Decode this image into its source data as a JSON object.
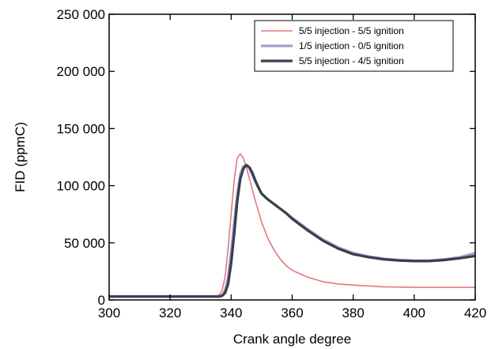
{
  "chart_data": {
    "type": "line",
    "title": "",
    "xlabel": "Crank angle degree",
    "ylabel": "FID (ppmC)",
    "xlim": [
      300,
      420
    ],
    "ylim": [
      0,
      250000
    ],
    "x_ticks": [
      300,
      320,
      340,
      360,
      380,
      400,
      420
    ],
    "x_tick_labels": [
      "300",
      "320",
      "340",
      "360",
      "380",
      "400",
      "420"
    ],
    "y_ticks": [
      0,
      50000,
      100000,
      150000,
      200000,
      250000
    ],
    "y_tick_labels": [
      "0",
      "50 000",
      "100 000",
      "150 000",
      "200 000",
      "250 000"
    ],
    "grid": false,
    "legend_position": "top-right",
    "series": [
      {
        "name": "5/5 injection - 5/5 ignition",
        "color": "#e07a7a",
        "stroke_weight": 1,
        "x": [
          300,
          330,
          335,
          336,
          337,
          338,
          339,
          340,
          341,
          342,
          343,
          344,
          345,
          346,
          347,
          348,
          349,
          350,
          352,
          354,
          356,
          358,
          360,
          365,
          370,
          375,
          380,
          390,
          400,
          410,
          420
        ],
        "y": [
          3500,
          3500,
          3500,
          4000,
          8000,
          20000,
          45000,
          75000,
          105000,
          124000,
          128000,
          124000,
          116000,
          106000,
          96000,
          86000,
          77000,
          68000,
          54000,
          44000,
          36000,
          30000,
          26000,
          20000,
          16000,
          14000,
          13000,
          11500,
          11000,
          11000,
          11000
        ]
      },
      {
        "name": "1/5 injection - 0/5 ignition",
        "color": "#9ea4cc",
        "stroke_weight": 3,
        "x": [
          300,
          330,
          336,
          337,
          338,
          339,
          340,
          341,
          342,
          343,
          344,
          345,
          346,
          347,
          348,
          349,
          350,
          352,
          354,
          356,
          358,
          360,
          365,
          370,
          375,
          380,
          385,
          390,
          395,
          400,
          405,
          410,
          415,
          420
        ],
        "y": [
          3000,
          3000,
          3000,
          4000,
          8000,
          20000,
          42000,
          68000,
          92000,
          110000,
          117000,
          118000,
          115000,
          109000,
          103000,
          98000,
          93000,
          88000,
          84000,
          80000,
          76000,
          72000,
          62000,
          53000,
          46000,
          41000,
          38000,
          36000,
          35000,
          34500,
          34500,
          35500,
          37500,
          41000
        ]
      },
      {
        "name": "5/5 injection - 4/5 ignition",
        "color": "#3c3c4e",
        "stroke_weight": 3,
        "x": [
          300,
          330,
          336,
          337,
          338,
          339,
          340,
          341,
          342,
          343,
          344,
          345,
          346,
          347,
          348,
          349,
          350,
          352,
          354,
          356,
          358,
          360,
          365,
          370,
          375,
          380,
          385,
          390,
          395,
          400,
          405,
          410,
          415,
          420
        ],
        "y": [
          3000,
          3000,
          3000,
          3500,
          6000,
          14000,
          32000,
          58000,
          86000,
          106000,
          115000,
          118000,
          116000,
          111000,
          104000,
          98000,
          93000,
          88000,
          84000,
          80000,
          76000,
          71000,
          61000,
          52000,
          45000,
          40000,
          37500,
          35500,
          34500,
          34000,
          34000,
          35000,
          36500,
          38500
        ]
      }
    ]
  }
}
